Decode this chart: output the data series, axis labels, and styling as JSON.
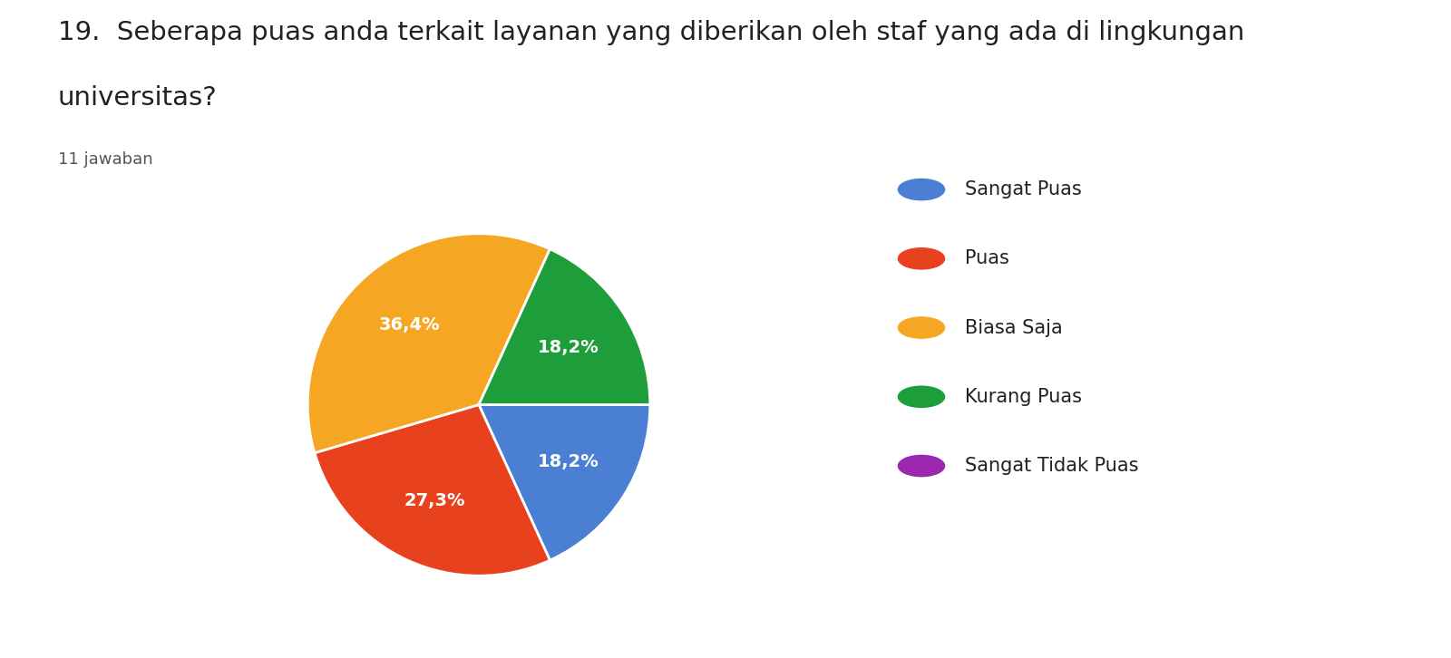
{
  "title_line1": "19.  Seberapa puas anda terkait layanan yang diberikan oleh staf yang ada di lingkungan",
  "title_line2": "universitas?",
  "subtitle": "11 jawaban",
  "labels": [
    "Sangat Puas",
    "Puas",
    "Biasa Saja",
    "Kurang Puas",
    "Sangat Tidak Puas"
  ],
  "values": [
    18.2,
    27.3,
    36.4,
    18.2,
    0
  ],
  "colors": [
    "#4a7fd4",
    "#e8411e",
    "#f5a623",
    "#1e9e3a",
    "#9c27b0"
  ],
  "pct_labels": [
    "18,2%",
    "27,3%",
    "36,4%",
    "18,2%",
    ""
  ],
  "title_fontsize": 21,
  "subtitle_fontsize": 13,
  "legend_fontsize": 15,
  "pct_fontsize": 14,
  "background_color": "#ffffff"
}
